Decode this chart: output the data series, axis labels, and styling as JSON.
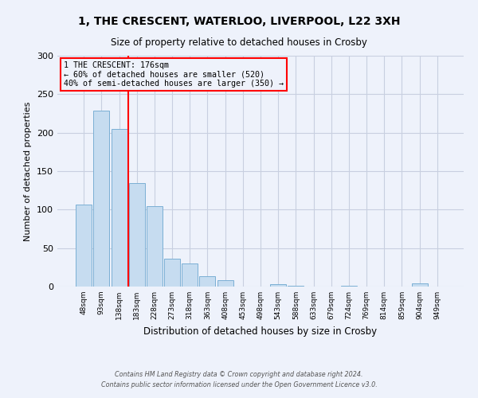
{
  "title": "1, THE CRESCENT, WATERLOO, LIVERPOOL, L22 3XH",
  "subtitle": "Size of property relative to detached houses in Crosby",
  "xlabel": "Distribution of detached houses by size in Crosby",
  "ylabel": "Number of detached properties",
  "bar_labels": [
    "48sqm",
    "93sqm",
    "138sqm",
    "183sqm",
    "228sqm",
    "273sqm",
    "318sqm",
    "363sqm",
    "408sqm",
    "453sqm",
    "498sqm",
    "543sqm",
    "588sqm",
    "633sqm",
    "679sqm",
    "724sqm",
    "769sqm",
    "814sqm",
    "859sqm",
    "904sqm",
    "949sqm"
  ],
  "bar_values": [
    107,
    229,
    205,
    134,
    104,
    36,
    30,
    13,
    8,
    0,
    0,
    3,
    1,
    0,
    0,
    1,
    0,
    0,
    0,
    4,
    0
  ],
  "bar_color": "#c6dcf0",
  "bar_edge_color": "#7bafd4",
  "vline_color": "red",
  "vline_pos": 2.5,
  "ylim": [
    0,
    300
  ],
  "yticks": [
    0,
    50,
    100,
    150,
    200,
    250,
    300
  ],
  "annotation_title": "1 THE CRESCENT: 176sqm",
  "annotation_line1": "← 60% of detached houses are smaller (520)",
  "annotation_line2": "40% of semi-detached houses are larger (350) →",
  "annotation_box_color": "red",
  "footnote1": "Contains HM Land Registry data © Crown copyright and database right 2024.",
  "footnote2": "Contains public sector information licensed under the Open Government Licence v3.0.",
  "background_color": "#eef2fb",
  "grid_color": "#c8cfe0"
}
